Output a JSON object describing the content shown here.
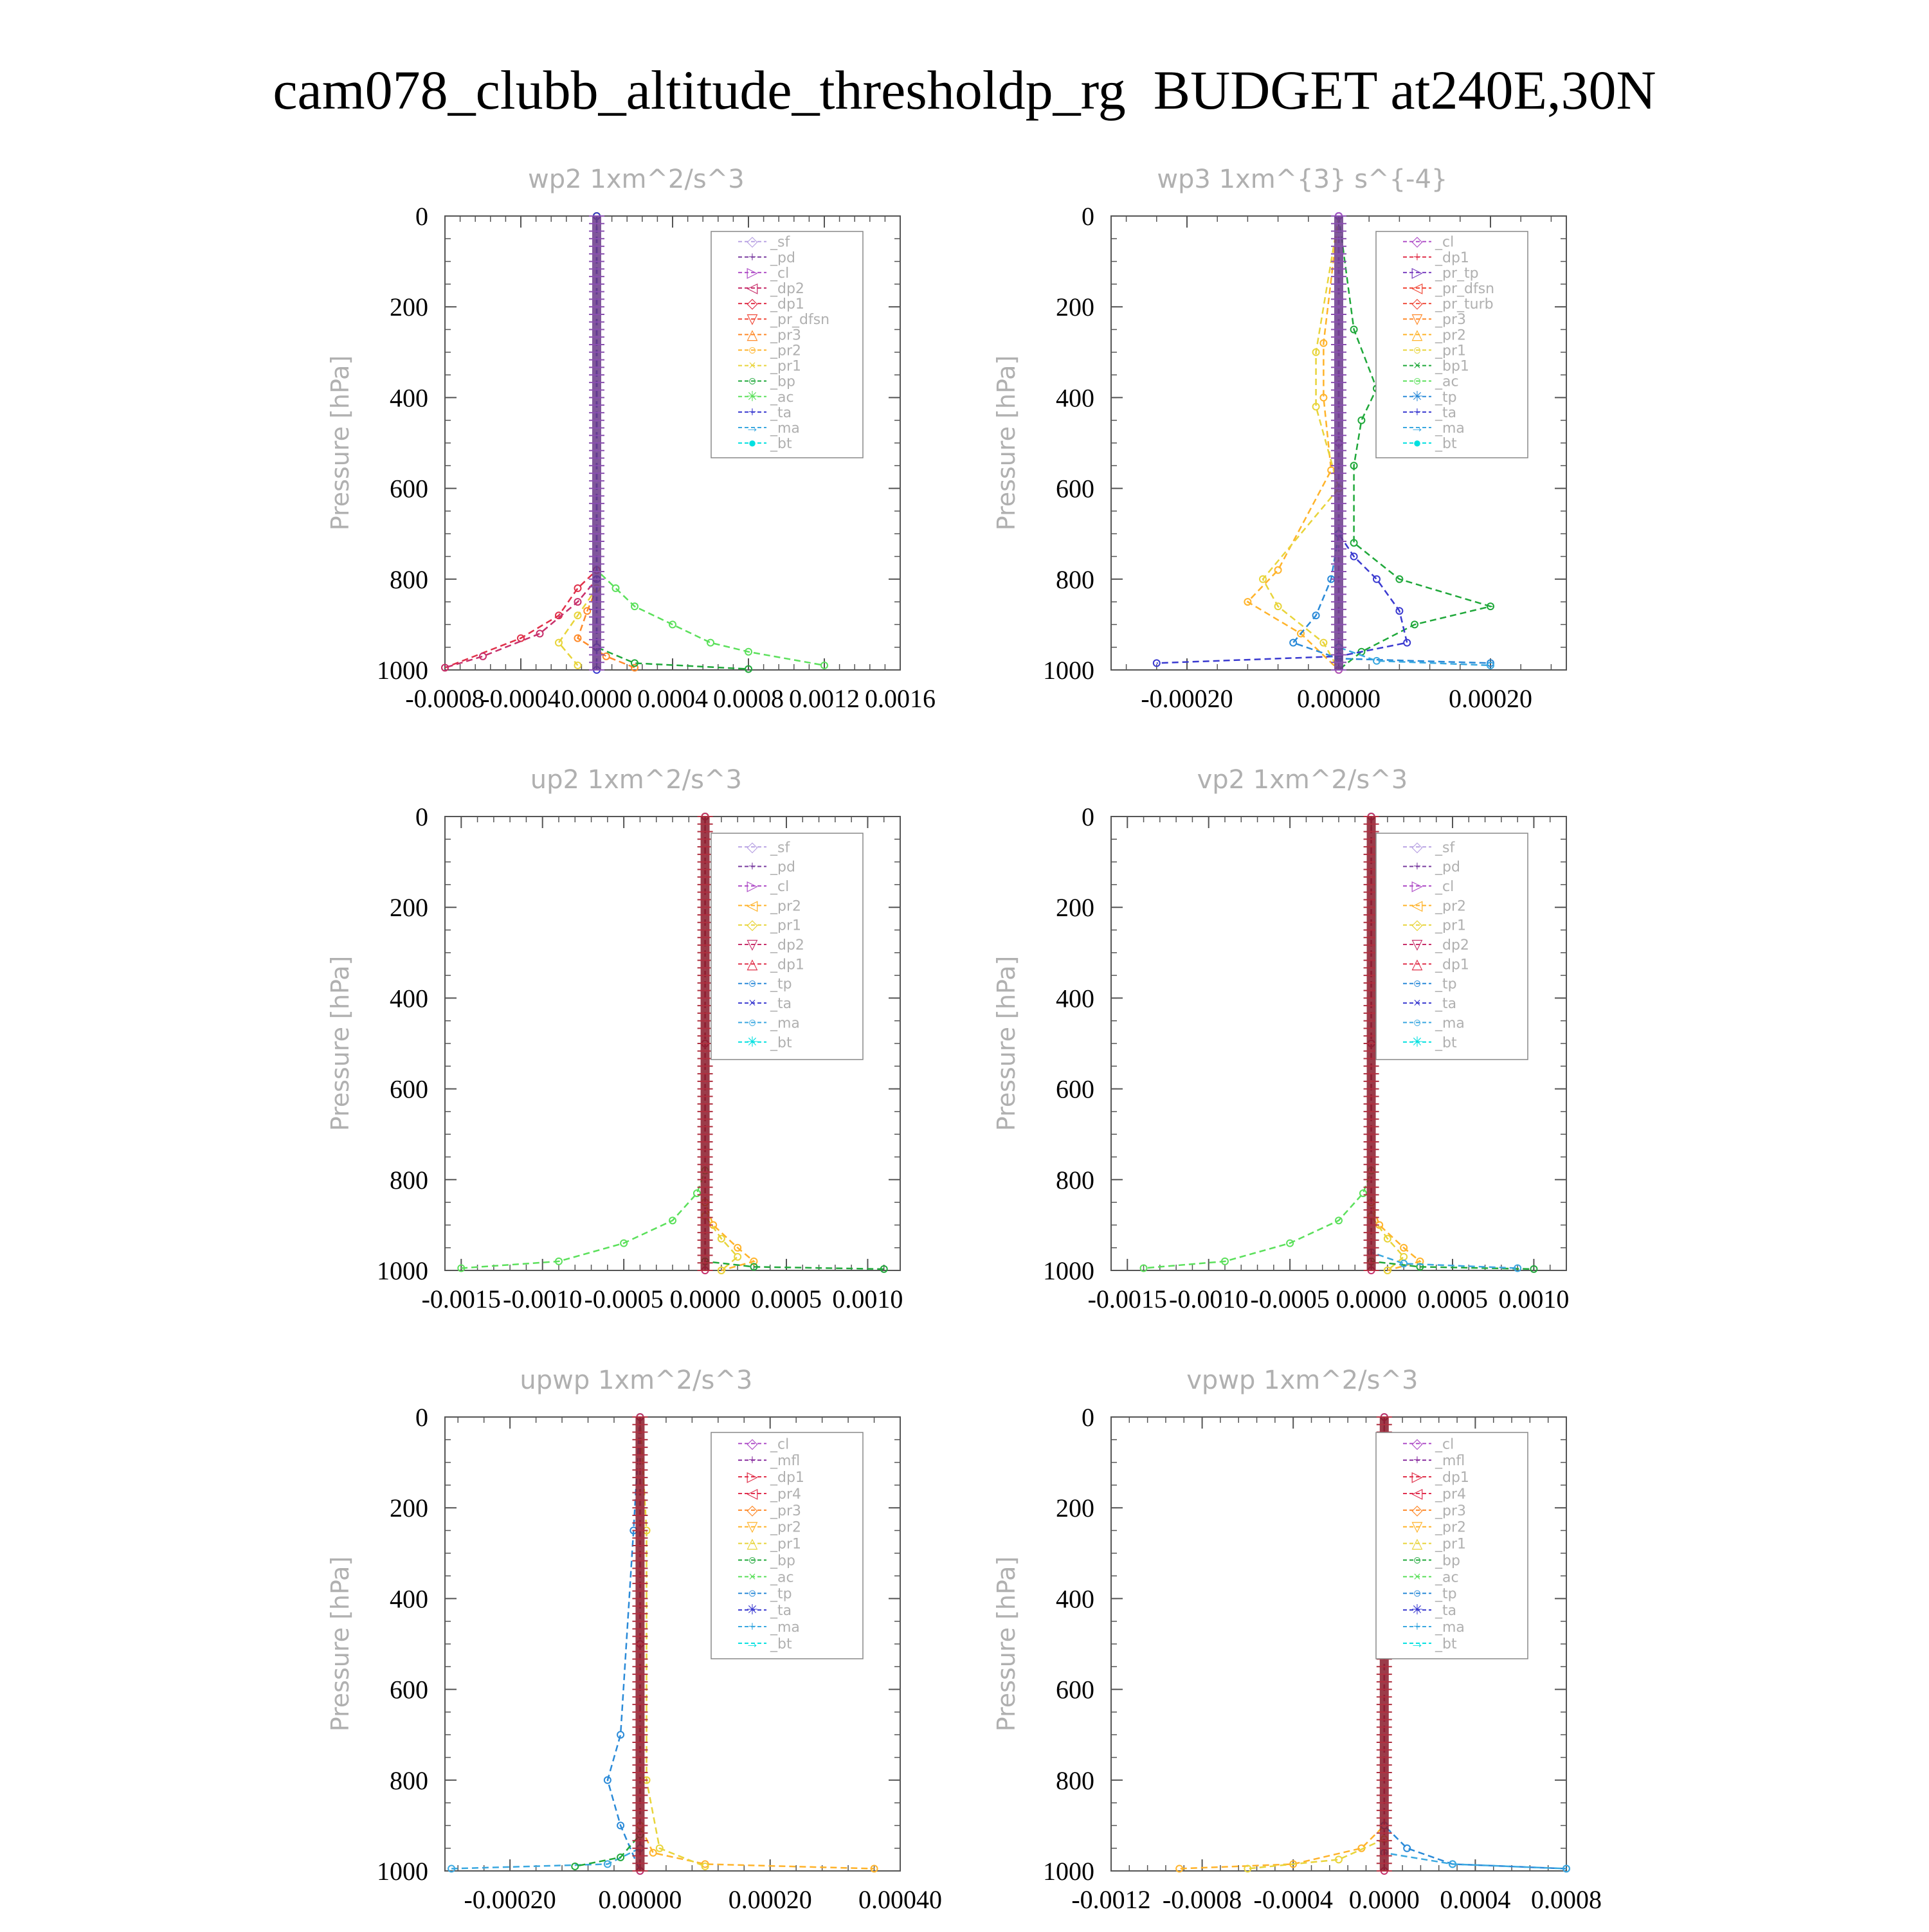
{
  "page_title": "cam078_clubb_altitude_thresholdp_rg  BUDGET at240E,30N",
  "colors": {
    "sf": "#b9a3e3",
    "pd": "#7b3fa0",
    "cl": "#b050c8",
    "dp2": "#c8306b",
    "dp1": "#e0304a",
    "pr_dfsn": "#f04a3a",
    "pr3": "#ff8a2a",
    "pr2": "#ffb32a",
    "pr1": "#e8d43a",
    "bp": "#1fa83a",
    "ac": "#5be05b",
    "tp": "#2a8ad8",
    "ta": "#3a3ad0",
    "ma": "#3aa8e0",
    "bt": "#00e0e0",
    "mfl": "#8a30a0",
    "pr4": "#e03050",
    "pr_tp": "#7a40c0",
    "pr_turb": "#f05040",
    "bp1": "#1fa83a",
    "frame": "#555555",
    "title_gray": "#b0b0b0"
  },
  "chart_data": [
    {
      "type": "line",
      "title": "wp2  1xm^2/s^3",
      "ylabel": "Pressure [hPa]",
      "ylim": [
        0,
        1000
      ],
      "y_reversed": true,
      "yticks": [
        "0",
        "200",
        "400",
        "600",
        "800",
        "1000"
      ],
      "xlim": [
        -0.0008,
        0.0016
      ],
      "xticks": [
        "-0.0008",
        "-0.0004",
        "0.0000",
        "0.0004",
        "0.0008",
        "0.0012",
        "0.0016"
      ],
      "legend": [
        "_sf",
        "_pd",
        "_cl",
        "_dp2",
        "_dp1",
        "_pr_dfsn",
        "_pr3",
        "_pr2",
        "_pr1",
        "_bp",
        "_ac",
        "_ta",
        "_ma",
        "_bt"
      ],
      "legend_position": "top-right",
      "grid": false,
      "series": [
        {
          "name": "_ac",
          "color_key": "ac",
          "x": [
            0,
            0,
            0.0001,
            0.0002,
            0.0004,
            0.0006,
            0.0008,
            0.0012
          ],
          "y": [
            0,
            780,
            820,
            860,
            900,
            940,
            960,
            990
          ]
        },
        {
          "name": "_dp1",
          "color_key": "dp1",
          "x": [
            0,
            0,
            -0.0001,
            -0.0002,
            -0.0004,
            -0.0008
          ],
          "y": [
            0,
            780,
            820,
            880,
            930,
            995
          ]
        },
        {
          "name": "_dp2",
          "color_key": "dp2",
          "x": [
            0,
            0,
            -0.0001,
            -0.0003,
            -0.0006,
            -0.0008
          ],
          "y": [
            0,
            800,
            850,
            920,
            970,
            995
          ]
        },
        {
          "name": "_pr3",
          "color_key": "pr3",
          "x": [
            0,
            0,
            -5e-05,
            -0.0001,
            5e-05,
            0.0002
          ],
          "y": [
            0,
            820,
            870,
            930,
            970,
            995
          ]
        },
        {
          "name": "_pr1",
          "color_key": "pr1",
          "x": [
            0,
            0,
            -0.0001,
            -0.0002,
            -0.0001
          ],
          "y": [
            0,
            820,
            880,
            940,
            990
          ]
        },
        {
          "name": "_bp",
          "color_key": "bp",
          "x": [
            0,
            0,
            0.0002,
            0.0008
          ],
          "y": [
            0,
            950,
            985,
            998
          ]
        },
        {
          "name": "_ta",
          "color_key": "ta",
          "x": [
            0,
            0,
            0,
            0
          ],
          "y": [
            0,
            800,
            950,
            1000
          ]
        }
      ]
    },
    {
      "type": "line",
      "title": "wp3  1xm^{3} s^{-4}",
      "ylabel": "Pressure [hPa]",
      "ylim": [
        0,
        1000
      ],
      "y_reversed": true,
      "yticks": [
        "0",
        "200",
        "400",
        "600",
        "800",
        "1000"
      ],
      "xlim": [
        -0.0003,
        0.0003
      ],
      "xticks": [
        "-0.00020",
        "0.00000",
        "0.00020"
      ],
      "legend": [
        "_cl",
        "_dp1",
        "_pr_tp",
        "_pr_dfsn",
        "_pr_turb",
        "_pr3",
        "_pr2",
        "_pr1",
        "_bp1",
        "_ac",
        "_tp",
        "_ta",
        "_ma",
        "_bt"
      ],
      "legend_position": "top-right",
      "grid": false,
      "series": [
        {
          "name": "_bp1",
          "color_key": "bp1",
          "x": [
            0,
            2e-05,
            5e-05,
            3e-05,
            2e-05,
            2e-05,
            8e-05,
            0.0002,
            0.0001,
            3e-05,
            0
          ],
          "y": [
            0,
            250,
            380,
            450,
            550,
            720,
            800,
            860,
            900,
            960,
            1000
          ]
        },
        {
          "name": "_pr2",
          "color_key": "pr2",
          "x": [
            0,
            -2e-05,
            -2e-05,
            -1e-05,
            -8e-05,
            -0.00012,
            -5e-05,
            0
          ],
          "y": [
            0,
            280,
            400,
            560,
            780,
            850,
            920,
            1000
          ]
        },
        {
          "name": "_pr1",
          "color_key": "pr1",
          "x": [
            0,
            -3e-05,
            -3e-05,
            0,
            -0.0001,
            -8e-05,
            -2e-05,
            0
          ],
          "y": [
            0,
            300,
            420,
            600,
            800,
            860,
            940,
            1000
          ]
        },
        {
          "name": "_ta",
          "color_key": "ta",
          "x": [
            0,
            0,
            2e-05,
            5e-05,
            8e-05,
            9e-05,
            0,
            -0.00024
          ],
          "y": [
            0,
            700,
            750,
            800,
            870,
            940,
            970,
            985
          ]
        },
        {
          "name": "_tp",
          "color_key": "tp",
          "x": [
            0,
            0,
            -1e-05,
            -3e-05,
            -6e-05,
            0,
            0.0002
          ],
          "y": [
            0,
            700,
            800,
            880,
            940,
            975,
            985
          ]
        },
        {
          "name": "_ma",
          "color_key": "ma",
          "x": [
            0,
            0,
            5e-05,
            0.0002
          ],
          "y": [
            0,
            950,
            980,
            990
          ]
        },
        {
          "name": "_cl",
          "color_key": "cl",
          "x": [
            0,
            0,
            0
          ],
          "y": [
            0,
            500,
            1000
          ]
        }
      ]
    },
    {
      "type": "line",
      "title": "up2  1xm^2/s^3",
      "ylabel": "Pressure [hPa]",
      "ylim": [
        0,
        1000
      ],
      "y_reversed": true,
      "yticks": [
        "0",
        "200",
        "400",
        "600",
        "800",
        "1000"
      ],
      "xlim": [
        -0.0016,
        0.0012
      ],
      "xticks": [
        "-0.0015",
        "-0.0010",
        "-0.0005",
        "0.0000",
        "0.0005",
        "0.0010"
      ],
      "legend": [
        "_sf",
        "_pd",
        "_cl",
        "_pr2",
        "_pr1",
        "_dp2",
        "_dp1",
        "_tp",
        "_ta",
        "_ma",
        "_bt"
      ],
      "legend_position": "top-right",
      "grid": false,
      "series": [
        {
          "name": "_dp1",
          "color_key": "ac",
          "x": [
            0,
            0,
            -5e-05,
            -0.0002,
            -0.0005,
            -0.0009,
            -0.0015
          ],
          "y": [
            0,
            780,
            830,
            890,
            940,
            980,
            995
          ]
        },
        {
          "name": "_pr2",
          "color_key": "pr2",
          "x": [
            0,
            0,
            5e-05,
            0.0002,
            0.0003,
            0.0001
          ],
          "y": [
            0,
            850,
            900,
            950,
            980,
            1000
          ]
        },
        {
          "name": "_pr1",
          "color_key": "pr1",
          "x": [
            0,
            0,
            0.0001,
            0.0002,
            0.0001
          ],
          "y": [
            0,
            880,
            930,
            970,
            1000
          ]
        },
        {
          "name": "_dp2",
          "color_key": "bp",
          "x": [
            0,
            0,
            0.0003,
            0.0011
          ],
          "y": [
            0,
            980,
            992,
            997
          ]
        },
        {
          "name": "_sf",
          "color_key": "dp2",
          "x": [
            0,
            0,
            0
          ],
          "y": [
            0,
            500,
            1000
          ]
        }
      ]
    },
    {
      "type": "line",
      "title": "vp2  1xm^2/s^3",
      "ylabel": "Pressure [hPa]",
      "ylim": [
        0,
        1000
      ],
      "y_reversed": true,
      "yticks": [
        "0",
        "200",
        "400",
        "600",
        "800",
        "1000"
      ],
      "xlim": [
        -0.0016,
        0.0012
      ],
      "xticks": [
        "-0.0015",
        "-0.0010",
        "-0.0005",
        "0.0000",
        "0.0005",
        "0.0010"
      ],
      "legend": [
        "_sf",
        "_pd",
        "_cl",
        "_pr2",
        "_pr1",
        "_dp2",
        "_dp1",
        "_tp",
        "_ta",
        "_ma",
        "_bt"
      ],
      "legend_position": "top-right",
      "grid": false,
      "series": [
        {
          "name": "_dp1",
          "color_key": "ac",
          "x": [
            0,
            0,
            -5e-05,
            -0.0002,
            -0.0005,
            -0.0009,
            -0.0014
          ],
          "y": [
            0,
            780,
            830,
            890,
            940,
            980,
            995
          ]
        },
        {
          "name": "_pr2",
          "color_key": "pr2",
          "x": [
            0,
            0,
            5e-05,
            0.0002,
            0.0003,
            0.0001
          ],
          "y": [
            0,
            850,
            900,
            950,
            980,
            1000
          ]
        },
        {
          "name": "_pr1",
          "color_key": "pr1",
          "x": [
            0,
            0,
            0.0001,
            0.0002,
            0.0001
          ],
          "y": [
            0,
            880,
            930,
            970,
            1000
          ]
        },
        {
          "name": "_dp2",
          "color_key": "bp",
          "x": [
            0,
            0,
            0.0003,
            0.001
          ],
          "y": [
            0,
            980,
            992,
            997
          ]
        },
        {
          "name": "_ma",
          "color_key": "ma",
          "x": [
            0,
            0,
            0.0002,
            0.0009
          ],
          "y": [
            0,
            960,
            985,
            995
          ]
        },
        {
          "name": "_sf",
          "color_key": "dp2",
          "x": [
            0,
            0,
            0
          ],
          "y": [
            0,
            500,
            1000
          ]
        }
      ]
    },
    {
      "type": "line",
      "title": "upwp  1xm^2/s^3",
      "ylabel": "Pressure [hPa]",
      "ylim": [
        0,
        1000
      ],
      "y_reversed": true,
      "yticks": [
        "0",
        "200",
        "400",
        "600",
        "800",
        "1000"
      ],
      "xlim": [
        -0.0003,
        0.0004
      ],
      "xticks": [
        "-0.00020",
        "0.00000",
        "0.00020",
        "0.00040"
      ],
      "legend": [
        "_cl",
        "_mfl",
        "_dp1",
        "_pr4",
        "_pr3",
        "_pr2",
        "_pr1",
        "_bp",
        "_ac",
        "_tp",
        "_ta",
        "_ma",
        "_bt"
      ],
      "legend_position": "top-right",
      "grid": false,
      "series": [
        {
          "name": "_pr2",
          "color_key": "pr2",
          "x": [
            0,
            0,
            2e-05,
            0.0001,
            0.00036
          ],
          "y": [
            0,
            900,
            960,
            985,
            995
          ]
        },
        {
          "name": "_pr1",
          "color_key": "pr1",
          "x": [
            0,
            1e-05,
            1e-05,
            3e-05,
            0.0001
          ],
          "y": [
            0,
            250,
            800,
            950,
            990
          ]
        },
        {
          "name": "_tp",
          "color_key": "tp",
          "x": [
            0,
            -1e-05,
            -3e-05,
            -5e-05,
            -3e-05,
            0
          ],
          "y": [
            0,
            250,
            700,
            800,
            900,
            1000
          ]
        },
        {
          "name": "_ma",
          "color_key": "ma",
          "x": [
            0,
            0,
            -5e-05,
            -0.00029
          ],
          "y": [
            0,
            950,
            985,
            995
          ]
        },
        {
          "name": "_bp",
          "color_key": "bp",
          "x": [
            0,
            0,
            -3e-05,
            -0.0001
          ],
          "y": [
            0,
            920,
            970,
            990
          ]
        },
        {
          "name": "_dp1",
          "color_key": "dp2",
          "x": [
            0,
            0,
            0
          ],
          "y": [
            0,
            500,
            1000
          ]
        }
      ]
    },
    {
      "type": "line",
      "title": "vpwp  1xm^2/s^3",
      "ylabel": "Pressure [hPa]",
      "ylim": [
        0,
        1000
      ],
      "y_reversed": true,
      "yticks": [
        "0",
        "200",
        "400",
        "600",
        "800",
        "1000"
      ],
      "xlim": [
        -0.0012,
        0.0008
      ],
      "xticks": [
        "-0.0012",
        "-0.0008",
        "-0.0004",
        "0.0000",
        "0.0004",
        "0.0008"
      ],
      "legend": [
        "_cl",
        "_mfl",
        "_dp1",
        "_pr4",
        "_pr3",
        "_pr2",
        "_pr1",
        "_bp",
        "_ac",
        "_tp",
        "_ta",
        "_ma",
        "_bt"
      ],
      "legend_position": "top-right",
      "grid": false,
      "series": [
        {
          "name": "_pr2",
          "color_key": "pr2",
          "x": [
            0,
            0,
            -0.0001,
            -0.0004,
            -0.0009
          ],
          "y": [
            0,
            900,
            950,
            985,
            995
          ]
        },
        {
          "name": "_pr1",
          "color_key": "pr1",
          "x": [
            0,
            0,
            -0.0002,
            -0.0006
          ],
          "y": [
            0,
            930,
            975,
            995
          ]
        },
        {
          "name": "_tp",
          "color_key": "tp",
          "x": [
            0,
            0,
            0.0001,
            0.0003,
            0.0008
          ],
          "y": [
            0,
            900,
            950,
            985,
            995
          ]
        },
        {
          "name": "_ma",
          "color_key": "ma",
          "x": [
            0,
            0,
            0.0003,
            0.0008
          ],
          "y": [
            0,
            960,
            985,
            995
          ]
        },
        {
          "name": "_dp1",
          "color_key": "dp2",
          "x": [
            0,
            0,
            0
          ],
          "y": [
            0,
            500,
            1000
          ]
        }
      ]
    }
  ]
}
